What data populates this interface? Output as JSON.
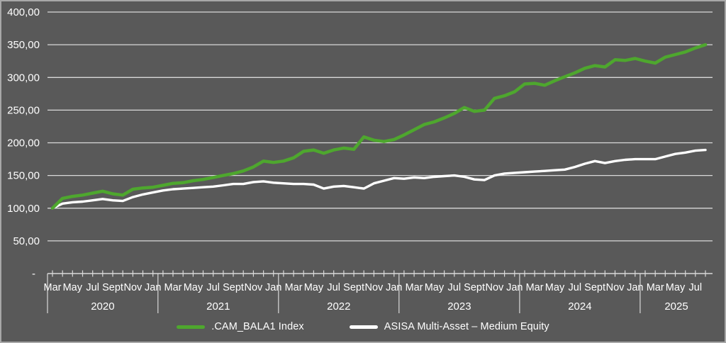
{
  "colors": {
    "background": "#595959",
    "border": "#a8a8a8",
    "gridline": "#d9d9d9",
    "axis": "#d9d9d9",
    "text": "#ffffff",
    "series_green": "#4ea72e",
    "series_white": "#ffffff"
  },
  "axes": {
    "y_ticks": [
      {
        "label": "400,00",
        "value": 400
      },
      {
        "label": "350,00",
        "value": 350
      },
      {
        "label": "300,00",
        "value": 300
      },
      {
        "label": "250,00",
        "value": 250
      },
      {
        "label": "200,00",
        "value": 200
      },
      {
        "label": "150,00",
        "value": 150
      },
      {
        "label": "100,00",
        "value": 100
      },
      {
        "label": "50,00",
        "value": 50
      },
      {
        "label": "-",
        "value": 0
      }
    ],
    "month_label_cycle": [
      "Mar",
      "May",
      "Jul",
      "Sept",
      "Nov",
      "Jan"
    ],
    "year_labels": [
      "2020",
      "2021",
      "2022",
      "2023",
      "2024",
      "2025"
    ]
  },
  "chart_data": {
    "type": "line",
    "x_start": "2020-03",
    "x_end": "2025-08",
    "x_interval": "monthly",
    "ylim": [
      0,
      400
    ],
    "grid": true,
    "legend_position": "bottom",
    "series": [
      {
        "name": ".CAM_BALA1 Index",
        "color": "#4ea72e",
        "values": [
          100,
          115,
          118,
          120,
          123,
          126,
          122,
          120,
          129,
          131,
          132,
          135,
          138,
          139,
          142,
          144,
          147,
          150,
          153,
          157,
          163,
          172,
          170,
          172,
          177,
          187,
          189,
          184,
          189,
          192,
          190,
          209,
          204,
          202,
          205,
          212,
          220,
          228,
          232,
          238,
          245,
          254,
          248,
          250,
          268,
          272,
          278,
          290,
          291,
          288,
          295,
          301,
          307,
          314,
          318,
          316,
          327,
          326,
          329,
          325,
          322,
          331,
          335,
          339,
          345,
          350
        ]
      },
      {
        "name": "ASISA Multi-Asset – Medium Equity",
        "color": "#ffffff",
        "values": [
          100,
          107,
          109,
          110,
          112,
          114,
          112,
          111,
          117,
          121,
          124,
          127,
          129,
          130,
          131,
          132,
          133,
          135,
          137,
          137,
          140,
          141,
          139,
          138,
          137,
          137,
          136,
          130,
          133,
          134,
          132,
          130,
          138,
          142,
          146,
          145,
          147,
          146,
          148,
          149,
          150,
          148,
          144,
          143,
          150,
          153,
          154,
          155,
          156,
          157,
          158,
          159,
          163,
          168,
          172,
          169,
          172,
          174,
          175,
          175,
          175,
          179,
          183,
          185,
          188,
          189
        ]
      }
    ]
  }
}
